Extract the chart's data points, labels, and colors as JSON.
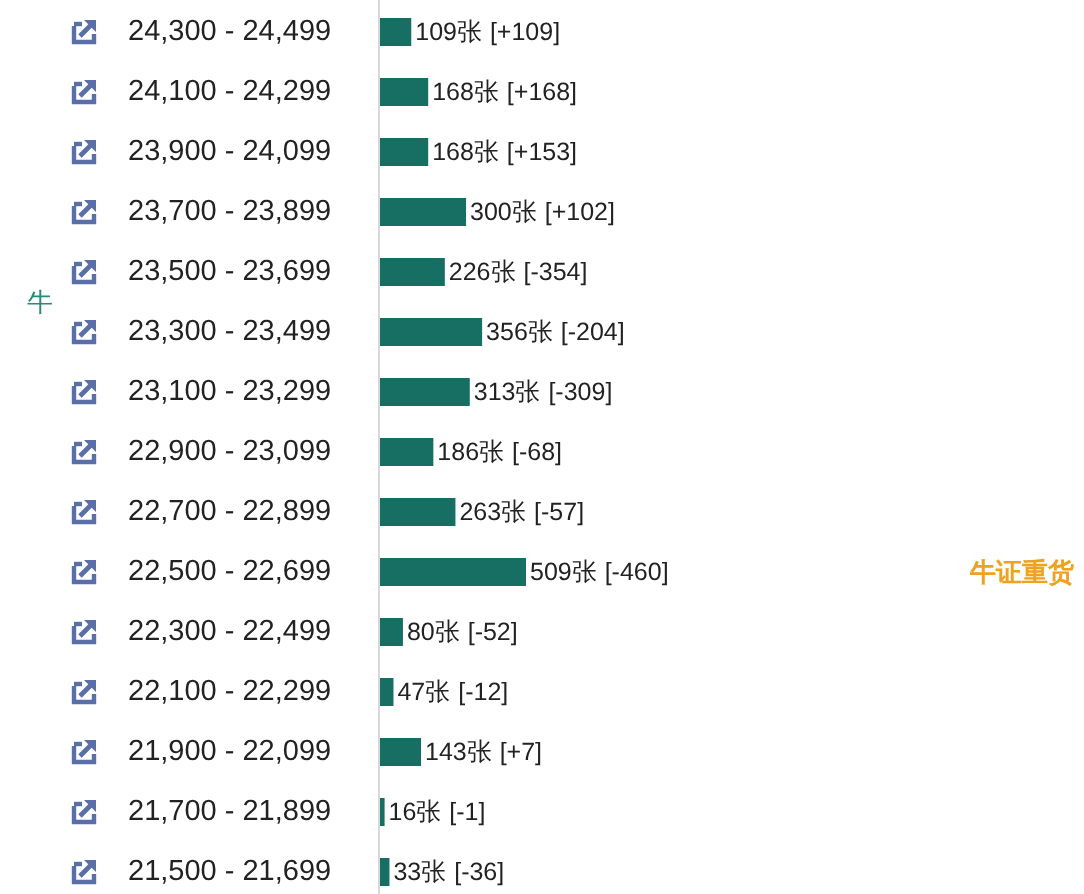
{
  "chart_data": {
    "type": "bar",
    "orientation": "horizontal",
    "categories": [
      "24,300 - 24,499",
      "24,100 - 24,299",
      "23,900 - 24,099",
      "23,700 - 23,899",
      "23,500 - 23,699",
      "23,300 - 23,499",
      "23,100 - 23,299",
      "22,900 - 23,099",
      "22,700 - 22,899",
      "22,500 - 22,699",
      "22,300 - 22,499",
      "22,100 - 22,299",
      "21,900 - 22,099",
      "21,700 - 21,899",
      "21,500 - 21,699"
    ],
    "values": [
      109,
      168,
      168,
      300,
      226,
      356,
      313,
      186,
      263,
      509,
      80,
      47,
      143,
      16,
      33
    ],
    "color": "#176e63",
    "value_labels": [
      "109张 [+109]",
      "168张 [+168]",
      "168张 [+153]",
      "300张 [+102]",
      "226张 [-354]",
      "356张 [-204]",
      "313张 [-309]",
      "186张 [-68]",
      "263张 [-57]",
      "509张 [-460]",
      "80张 [-52]",
      "47张 [-12]",
      "143张 [+7]",
      "16张 [-1]",
      "33张 [-36]"
    ],
    "annotations": [
      "牛",
      "牛证重货"
    ]
  }
}
